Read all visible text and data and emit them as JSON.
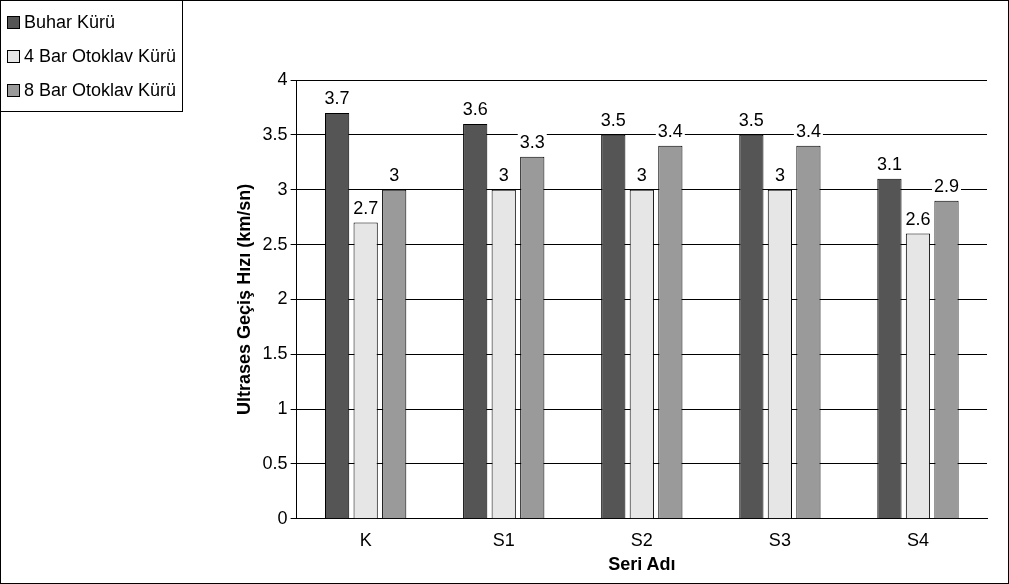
{
  "chart_data": {
    "type": "bar",
    "xlabel": "Seri Adı",
    "ylabel": "Ultrases Geçiş Hızı (km/sn)",
    "categories": [
      "K",
      "S1",
      "S2",
      "S3",
      "S4"
    ],
    "series": [
      {
        "name": "Buhar Kürü",
        "color": "#555555",
        "values": [
          3.7,
          3.6,
          3.5,
          3.5,
          3.1
        ]
      },
      {
        "name": "4 Bar Otoklav Kürü",
        "color": "#e6e6e6",
        "values": [
          2.7,
          3,
          3,
          3,
          2.6
        ]
      },
      {
        "name": "8 Bar Otoklav Kürü",
        "color": "#9a9a9a",
        "values": [
          3,
          3.3,
          3.4,
          3.4,
          2.9
        ]
      }
    ],
    "ylim": [
      0,
      4
    ],
    "yticks": [
      0,
      0.5,
      1,
      1.5,
      2,
      2.5,
      3,
      3.5,
      4
    ],
    "grid": "y",
    "legend": "top left",
    "data_labels": true
  }
}
